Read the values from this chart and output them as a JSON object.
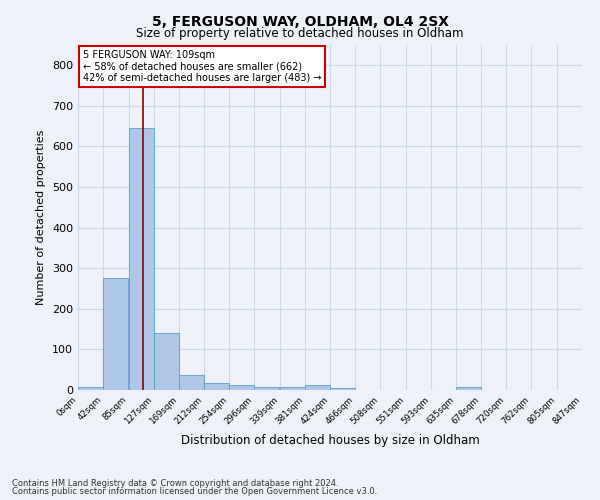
{
  "title1": "5, FERGUSON WAY, OLDHAM, OL4 2SX",
  "title2": "Size of property relative to detached houses in Oldham",
  "xlabel": "Distribution of detached houses by size in Oldham",
  "ylabel": "Number of detached properties",
  "footer1": "Contains HM Land Registry data © Crown copyright and database right 2024.",
  "footer2": "Contains public sector information licensed under the Open Government Licence v3.0.",
  "annotation_line1": "5 FERGUSON WAY: 109sqm",
  "annotation_line2": "← 58% of detached houses are smaller (662)",
  "annotation_line3": "42% of semi-detached houses are larger (483) →",
  "property_size": 109,
  "bar_values": [
    8,
    275,
    645,
    140,
    38,
    18,
    12,
    8,
    8,
    12,
    5,
    0,
    0,
    0,
    0,
    8,
    0,
    0,
    0
  ],
  "bin_edges": [
    0,
    42.5,
    85,
    127.5,
    169,
    212,
    254,
    296,
    339,
    381,
    424,
    466,
    508,
    551,
    593,
    635,
    678,
    720,
    762,
    805
  ],
  "tick_labels": [
    "0sqm",
    "42sqm",
    "85sqm",
    "127sqm",
    "169sqm",
    "212sqm",
    "254sqm",
    "296sqm",
    "339sqm",
    "381sqm",
    "424sqm",
    "466sqm",
    "508sqm",
    "551sqm",
    "593sqm",
    "635sqm",
    "678sqm",
    "720sqm",
    "762sqm",
    "805sqm",
    "847sqm"
  ],
  "bar_color": "#aec6e8",
  "bar_edge_color": "#5a9ec8",
  "vline_color": "#8b0000",
  "annotation_box_color": "#cc0000",
  "grid_color": "#c8d8e8",
  "background_color": "#eef2f8",
  "ylim": [
    0,
    850
  ],
  "yticks": [
    0,
    100,
    200,
    300,
    400,
    500,
    600,
    700,
    800
  ]
}
